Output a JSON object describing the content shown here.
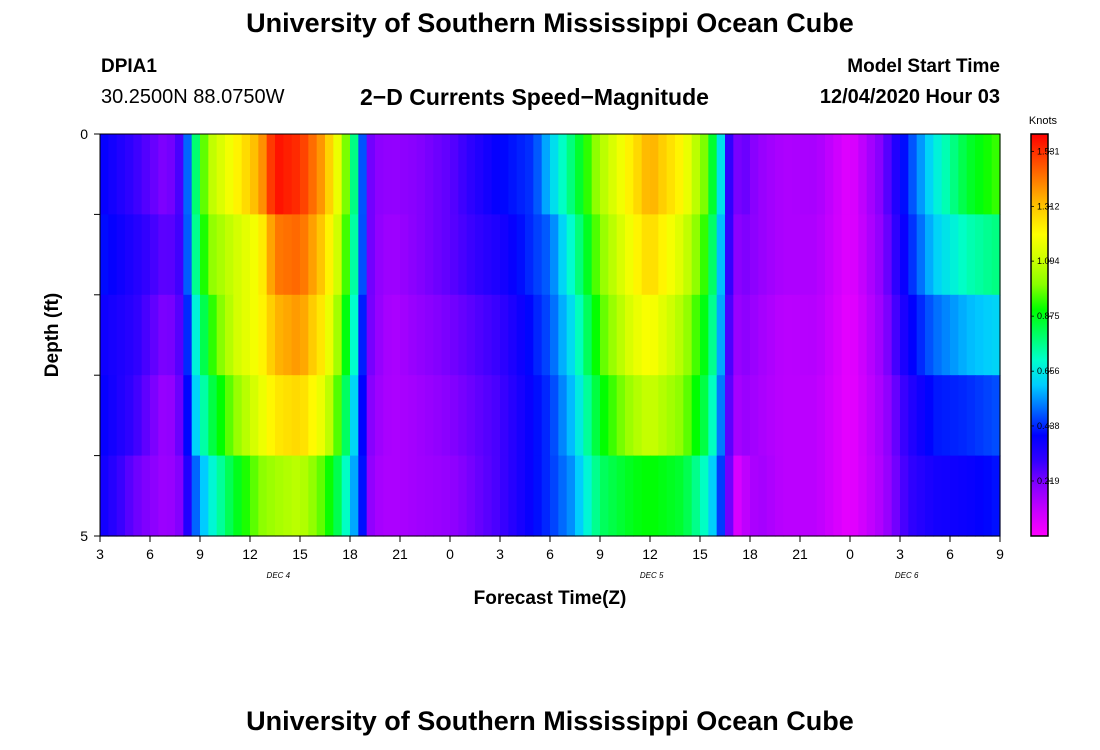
{
  "header": {
    "title": "University of Southern Mississippi Ocean Cube",
    "station_id": "DPIA1",
    "station_coords": "30.2500N 88.0750W",
    "plot_title": "2−D Currents Speed−Magnitude",
    "start_label": "Model Start Time",
    "start_value": "12/04/2020 Hour 03"
  },
  "footer": {
    "title": "University of Southern Mississippi Ocean Cube"
  },
  "chart_data": {
    "type": "heatmap",
    "xlabel": "Forecast Time(Z)",
    "ylabel": "Depth (ft)",
    "x_hours_start": 3,
    "x_hours_end": 57,
    "x_tick_labels": [
      "3",
      "6",
      "9",
      "12",
      "15",
      "18",
      "21",
      "0",
      "3",
      "6",
      "9",
      "12",
      "15",
      "18",
      "21",
      "0",
      "3",
      "6",
      "9"
    ],
    "day_labels": [
      {
        "text": "DEC 4",
        "at_hour": 13.7
      },
      {
        "text": "DEC 5",
        "at_hour": 36.1
      },
      {
        "text": "DEC 6",
        "at_hour": 51.4
      }
    ],
    "ylim": [
      0,
      5
    ],
    "y_tick_labels": [
      "0",
      "5"
    ],
    "depth_levels": 5,
    "colorbar": {
      "unit": "Knots",
      "min": 0,
      "max": 1.6,
      "tick_labels": [
        "1.531",
        "1.312",
        "1.094",
        "0.875",
        "0.656",
        "0.438",
        "0.219"
      ],
      "tick_values": [
        1.531,
        1.312,
        1.094,
        0.875,
        0.656,
        0.438,
        0.219
      ],
      "colors": [
        "#ff00ff",
        "#c800ff",
        "#8800ff",
        "#3300ff",
        "#0000ff",
        "#0066ff",
        "#00ccff",
        "#00ffcc",
        "#00ff66",
        "#00ff00",
        "#88ff00",
        "#ccff00",
        "#ffff00",
        "#ffcc00",
        "#ff8800",
        "#ff4400",
        "#ff0000"
      ]
    },
    "keyframes_hours": [
      3,
      5,
      7,
      8,
      8.5,
      9.5,
      11,
      12.6,
      13.5,
      15,
      16.5,
      17.5,
      18.3,
      18.8,
      19.3,
      20.5,
      22,
      24,
      27,
      29,
      30,
      31.4,
      33,
      35,
      36,
      38,
      39.5,
      40.2,
      40.6,
      41.1,
      41.5,
      42.5,
      44,
      46,
      48,
      50,
      51.5,
      53,
      55,
      57
    ],
    "keyframes_speed": [
      [
        0.4,
        0.42,
        0.38,
        0.4,
        0.38
      ],
      [
        0.3,
        0.34,
        0.32,
        0.3,
        0.24
      ],
      [
        0.2,
        0.24,
        0.2,
        0.16,
        0.16
      ],
      [
        0.3,
        0.3,
        0.28,
        0.26,
        0.22
      ],
      [
        0.7,
        0.68,
        0.6,
        0.55,
        0.45
      ],
      [
        1.06,
        1.0,
        0.9,
        0.8,
        0.65
      ],
      [
        1.2,
        1.1,
        1.1,
        1.0,
        0.85
      ],
      [
        1.35,
        1.2,
        1.2,
        1.15,
        1.0
      ],
      [
        1.58,
        1.42,
        1.33,
        1.24,
        1.04
      ],
      [
        1.53,
        1.45,
        1.38,
        1.28,
        1.08
      ],
      [
        1.35,
        1.28,
        1.22,
        1.14,
        0.95
      ],
      [
        1.1,
        1.05,
        0.98,
        0.9,
        0.78
      ],
      [
        0.75,
        0.72,
        0.68,
        0.6,
        0.55
      ],
      [
        0.45,
        0.45,
        0.4,
        0.38,
        0.4
      ],
      [
        0.2,
        0.2,
        0.2,
        0.18,
        0.16
      ],
      [
        0.18,
        0.16,
        0.14,
        0.14,
        0.14
      ],
      [
        0.2,
        0.2,
        0.18,
        0.16,
        0.16
      ],
      [
        0.25,
        0.25,
        0.22,
        0.2,
        0.18
      ],
      [
        0.4,
        0.35,
        0.3,
        0.28,
        0.28
      ],
      [
        0.45,
        0.45,
        0.42,
        0.4,
        0.4
      ],
      [
        0.6,
        0.5,
        0.48,
        0.45,
        0.45
      ],
      [
        0.8,
        0.72,
        0.65,
        0.6,
        0.55
      ],
      [
        1.05,
        1.0,
        0.95,
        0.88,
        0.8
      ],
      [
        1.25,
        1.2,
        1.15,
        1.05,
        0.88
      ],
      [
        1.35,
        1.28,
        1.2,
        1.1,
        0.9
      ],
      [
        1.2,
        1.12,
        1.05,
        1.0,
        0.85
      ],
      [
        0.95,
        0.9,
        0.85,
        0.8,
        0.68
      ],
      [
        0.68,
        0.62,
        0.6,
        0.55,
        0.48
      ],
      [
        0.35,
        0.35,
        0.32,
        0.3,
        0.3
      ],
      [
        0.2,
        0.18,
        0.16,
        0.14,
        0.05
      ],
      [
        0.25,
        0.22,
        0.2,
        0.18,
        0.1
      ],
      [
        0.18,
        0.18,
        0.16,
        0.15,
        0.16
      ],
      [
        0.14,
        0.14,
        0.12,
        0.12,
        0.12
      ],
      [
        0.15,
        0.14,
        0.13,
        0.12,
        0.12
      ],
      [
        0.05,
        0.05,
        0.04,
        0.04,
        0.04
      ],
      [
        0.22,
        0.2,
        0.18,
        0.16,
        0.15
      ],
      [
        0.45,
        0.42,
        0.38,
        0.32,
        0.3
      ],
      [
        0.65,
        0.6,
        0.5,
        0.42,
        0.36
      ],
      [
        0.85,
        0.72,
        0.58,
        0.44,
        0.38
      ],
      [
        0.95,
        0.78,
        0.62,
        0.48,
        0.42
      ]
    ]
  }
}
